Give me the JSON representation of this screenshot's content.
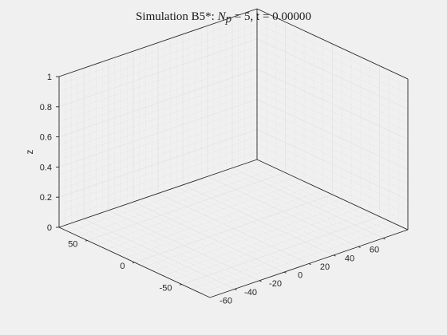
{
  "chart_data": {
    "type": "scatter",
    "title": {
      "prefix": "Simulation B5*: ",
      "math_symbol": "N",
      "math_subscript": "p",
      "suffix": " = 5, t = 0.00000"
    },
    "xlabel": "",
    "ylabel": "",
    "zlabel": "z",
    "xlim": [
      -80,
      80
    ],
    "ylim": [
      -80,
      80
    ],
    "zlim": [
      0,
      1
    ],
    "xticks": [
      -60,
      -40,
      -20,
      0,
      20,
      40,
      60
    ],
    "xtick_labels": [
      "-60",
      "-40",
      "-20",
      "0",
      "20",
      "40",
      "60"
    ],
    "yticks": [
      -50,
      0,
      50
    ],
    "ytick_labels": [
      "-50",
      "0",
      "50"
    ],
    "zticks": [
      0,
      0.2,
      0.4,
      0.6,
      0.8,
      1
    ],
    "ztick_labels": [
      "0",
      "0.2",
      "0.4",
      "0.6",
      "0.8",
      "1"
    ],
    "grid": true,
    "minor_grid": true,
    "box": true,
    "series": []
  }
}
